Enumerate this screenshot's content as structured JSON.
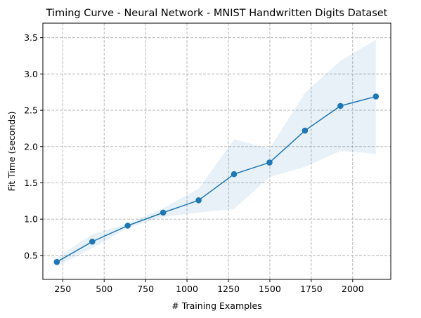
{
  "chart_data": {
    "type": "line",
    "title": "Timing Curve - Neural Network - MNIST Handwritten Digits Dataset",
    "xlabel": "# Training Examples",
    "ylabel": "Fit Time (seconds)",
    "xlim": [
      130,
      2230
    ],
    "ylim": [
      0.17,
      3.7
    ],
    "xticks": [
      250,
      500,
      750,
      1000,
      1250,
      1500,
      1750,
      2000
    ],
    "xtick_labels": [
      "250",
      "500",
      "750",
      "1000",
      "1250",
      "1500",
      "1750",
      "2000"
    ],
    "yticks": [
      0.5,
      1.0,
      1.5,
      2.0,
      2.5,
      3.0,
      3.5
    ],
    "ytick_labels": [
      "0.5",
      "1.0",
      "1.5",
      "2.0",
      "2.5",
      "3.0",
      "3.5"
    ],
    "grid": true,
    "legend": "none",
    "series": [
      {
        "x": [
          214,
          428,
          642,
          856,
          1070,
          1284,
          1498,
          1712,
          1926,
          2140
        ],
        "values": [
          0.41,
          0.69,
          0.91,
          1.09,
          1.26,
          1.62,
          1.78,
          2.22,
          2.56,
          2.69
        ],
        "band_lower": [
          0.35,
          0.6,
          0.88,
          1.03,
          1.09,
          1.14,
          1.58,
          1.72,
          1.94,
          1.9
        ],
        "band_upper": [
          0.47,
          0.79,
          0.94,
          1.15,
          1.42,
          2.1,
          1.97,
          2.74,
          3.18,
          3.47
        ],
        "color": "#1f77b4",
        "band_color": "#1f77b4"
      }
    ]
  }
}
